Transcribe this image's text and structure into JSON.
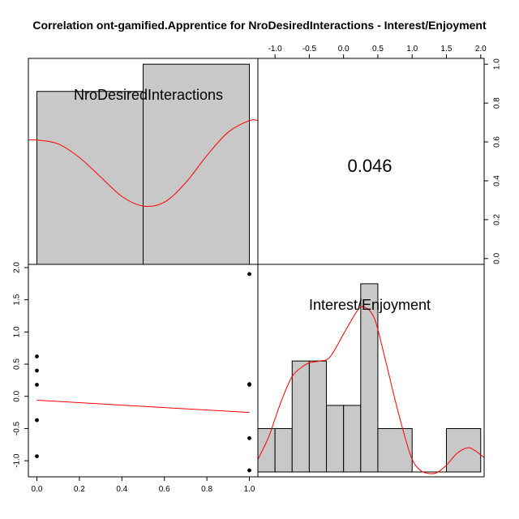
{
  "chart_data": {
    "type": "scatter-matrix",
    "title": "Correlation ont-gamified.Apprentice for NroDesiredInteractions - Interest/Enjoyment",
    "variables": [
      "NroDesiredInteractions",
      "Interest/Enjoyment"
    ],
    "correlation": "0.046",
    "colors": {
      "hist_fill": "#c8c8c8",
      "density": "#ff0000",
      "lm": "#ff0000",
      "points": "#000000",
      "axes": "#000000"
    },
    "top_axis": {
      "range": [
        -1.25,
        2.05
      ],
      "ticks": [
        -1.0,
        -0.5,
        0.0,
        0.5,
        1.0,
        1.5,
        2.0
      ],
      "labels": [
        "-1.0",
        "-0.5",
        "0.0",
        "0.5",
        "1.0",
        "1.5",
        "2.0"
      ]
    },
    "right_axis": {
      "range": [
        -0.03,
        1.03
      ],
      "ticks": [
        0.0,
        0.2,
        0.4,
        0.6,
        0.8,
        1.0
      ],
      "labels": [
        "0.0",
        "0.2",
        "0.4",
        "0.6",
        "0.8",
        "1.0"
      ]
    },
    "bottom_axis": {
      "range": [
        -0.04,
        1.04
      ],
      "ticks": [
        0.0,
        0.2,
        0.4,
        0.6,
        0.8,
        1.0
      ],
      "labels": [
        "0.0",
        "0.2",
        "0.4",
        "0.6",
        "0.8",
        "1.0"
      ]
    },
    "left_axis": {
      "range": [
        -1.25,
        2.05
      ],
      "ticks": [
        -1.0,
        -0.5,
        0.0,
        0.5,
        1.0,
        1.5,
        2.0
      ],
      "labels": [
        "-1.0",
        "-0.5",
        "0.0",
        "0.5",
        "1.0",
        "1.5",
        "2.0"
      ]
    },
    "hist1": {
      "bins": [
        [
          0.0,
          0.5
        ],
        [
          0.5,
          1.0
        ]
      ],
      "heights": [
        0.86,
        1.0
      ]
    },
    "density1": {
      "x": [
        -0.04,
        0.0,
        0.1,
        0.2,
        0.3,
        0.4,
        0.5,
        0.6,
        0.7,
        0.8,
        0.9,
        1.0,
        1.04
      ],
      "y": [
        0.61,
        0.61,
        0.59,
        0.52,
        0.42,
        0.32,
        0.27,
        0.29,
        0.39,
        0.53,
        0.65,
        0.71,
        0.71
      ]
    },
    "hist2": {
      "bins": [
        [
          -1.25,
          -1.0
        ],
        [
          -1.0,
          -0.75
        ],
        [
          -0.75,
          -0.5
        ],
        [
          -0.5,
          -0.25
        ],
        [
          -0.25,
          0.0
        ],
        [
          0.0,
          0.25
        ],
        [
          0.25,
          0.5
        ],
        [
          0.5,
          1.0
        ],
        [
          1.0,
          1.5
        ],
        [
          1.5,
          2.0
        ]
      ],
      "heights": [
        0.25,
        0.25,
        0.6,
        0.6,
        0.37,
        0.37,
        1.0,
        0.25,
        0.0,
        0.25
      ]
    },
    "density2": {
      "x": [
        -1.25,
        -1.1,
        -1.0,
        -0.9,
        -0.75,
        -0.6,
        -0.5,
        -0.35,
        -0.2,
        0.0,
        0.2,
        0.3,
        0.45,
        0.6,
        0.75,
        0.9,
        1.0,
        1.1,
        1.2,
        1.35,
        1.5,
        1.65,
        1.8,
        1.9,
        2.05
      ],
      "y": [
        0.09,
        0.2,
        0.3,
        0.4,
        0.52,
        0.57,
        0.59,
        0.6,
        0.62,
        0.74,
        0.86,
        0.88,
        0.82,
        0.62,
        0.4,
        0.2,
        0.09,
        0.04,
        0.02,
        0.02,
        0.06,
        0.12,
        0.15,
        0.14,
        0.1
      ]
    },
    "points": {
      "x": [
        0,
        0,
        0,
        0,
        0,
        1,
        1,
        1,
        1,
        1
      ],
      "y": [
        0.62,
        0.4,
        0.18,
        -0.37,
        -0.93,
        1.9,
        0.19,
        0.18,
        -0.65,
        -1.15
      ]
    },
    "lm_line": {
      "x": [
        0,
        1
      ],
      "y": [
        -0.06,
        -0.25
      ]
    }
  }
}
